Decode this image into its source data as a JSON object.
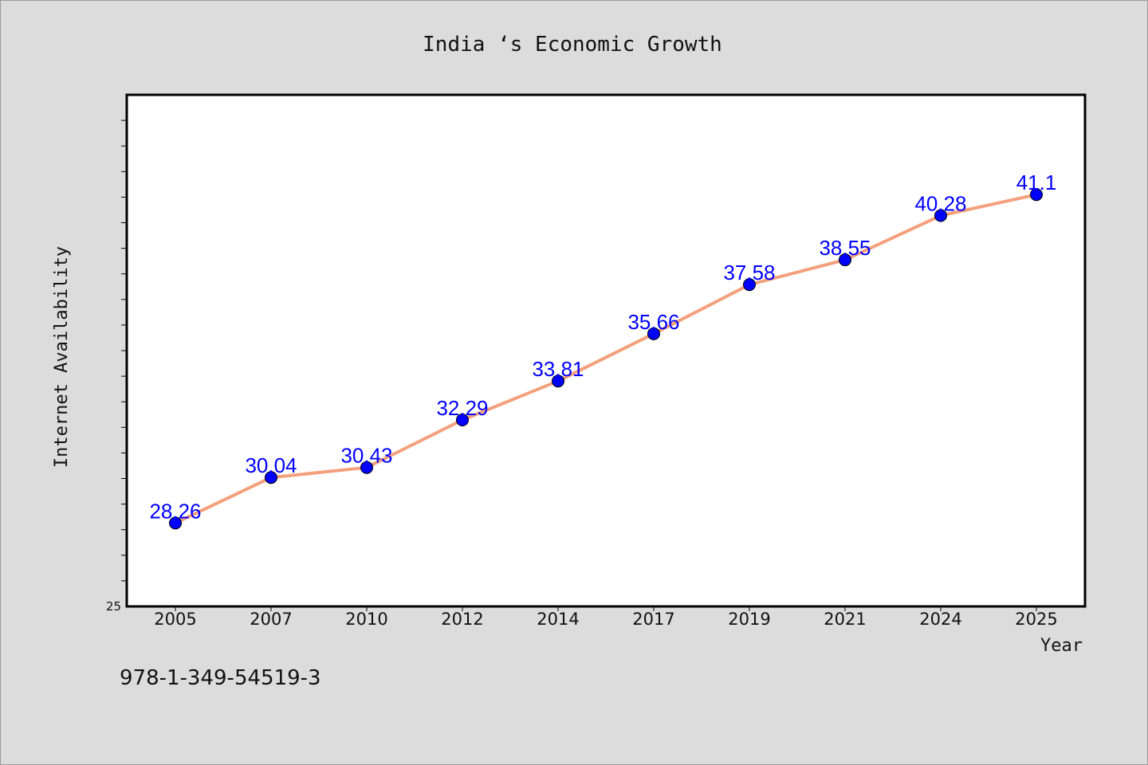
{
  "chart_data": {
    "type": "line",
    "title": "India ‘s Economic Growth",
    "xlabel": "Year",
    "ylabel": "Internet Availability",
    "categories": [
      "2005",
      "2007",
      "2010",
      "2012",
      "2014",
      "2017",
      "2019",
      "2021",
      "2024",
      "2025"
    ],
    "series": [
      {
        "values": [
          28.26,
          30.04,
          30.43,
          32.29,
          33.81,
          35.66,
          37.58,
          38.55,
          40.28,
          41.1
        ]
      }
    ],
    "data_labels": [
      "28.26",
      "30.04",
      "30.43",
      "32.29",
      "33.81",
      "35.66",
      "37.58",
      "38.55",
      "40.28",
      "41.1"
    ],
    "ylim": [
      25,
      45
    ],
    "ytick_labels": [
      "25"
    ],
    "grid": false,
    "line_color": "#f4a07c",
    "marker_color": "#0000ff",
    "label_color": "#0000ff"
  },
  "footer": {
    "isbn": "978-1-349-54519-3"
  }
}
